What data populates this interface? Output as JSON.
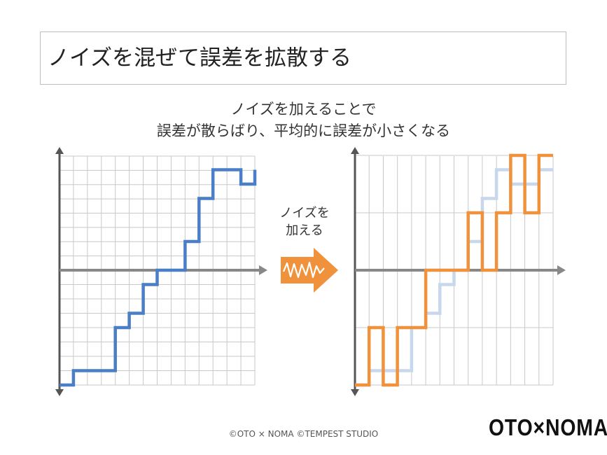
{
  "title": "ノイズを混ぜて誤差を拡散する",
  "subtitle_line1": "ノイズを加えることで",
  "subtitle_line2": "誤差が散らばり、平均的に誤差が小さくなる",
  "arrow_label_line1": "ノイズを",
  "arrow_label_line2": "加える",
  "copyright": "©OTO × NOMA ©TEMPEST STUDIO",
  "logo": "OTO×NOMA",
  "colors": {
    "quantized_signal": "#4a7fc7",
    "noisy_signal": "#f0923b",
    "reference_signal": "#c7d7ec",
    "grid": "#c8c8c8",
    "axis": "#888888"
  },
  "icons": [
    "noise-arrow-icon"
  ],
  "chart_data": [
    {
      "type": "line",
      "title": "",
      "step": "post",
      "xlim": [
        0,
        14
      ],
      "ylim": [
        -8,
        7
      ],
      "grid": true,
      "series": [
        {
          "x": [
            0,
            1,
            3,
            4,
            5,
            6,
            7,
            9,
            10,
            11,
            13,
            14
          ],
          "y": [
            -8,
            -7,
            -7,
            -4,
            -3,
            -1,
            0,
            2,
            5,
            7,
            6,
            7
          ]
        }
      ]
    },
    {
      "type": "line",
      "title": "",
      "step": "post",
      "xlim": [
        0,
        14
      ],
      "ylim": [
        -8,
        8
      ],
      "grid": true,
      "series": [
        {
          "role": "reference",
          "x": [
            0,
            1,
            3,
            4,
            5,
            6,
            7,
            8,
            9,
            10,
            11,
            13,
            14
          ],
          "y": [
            -8,
            -7,
            -7,
            -4,
            -3,
            -1,
            0,
            2,
            5,
            7,
            6,
            7,
            7
          ]
        },
        {
          "role": "noisy",
          "x": [
            0,
            1,
            2,
            3,
            4,
            5,
            7,
            8,
            9,
            10,
            11,
            12,
            13,
            14
          ],
          "y": [
            -8,
            -4,
            -8,
            -4,
            -4,
            0,
            0,
            4,
            0,
            4,
            8,
            4,
            8,
            8
          ]
        }
      ]
    }
  ]
}
